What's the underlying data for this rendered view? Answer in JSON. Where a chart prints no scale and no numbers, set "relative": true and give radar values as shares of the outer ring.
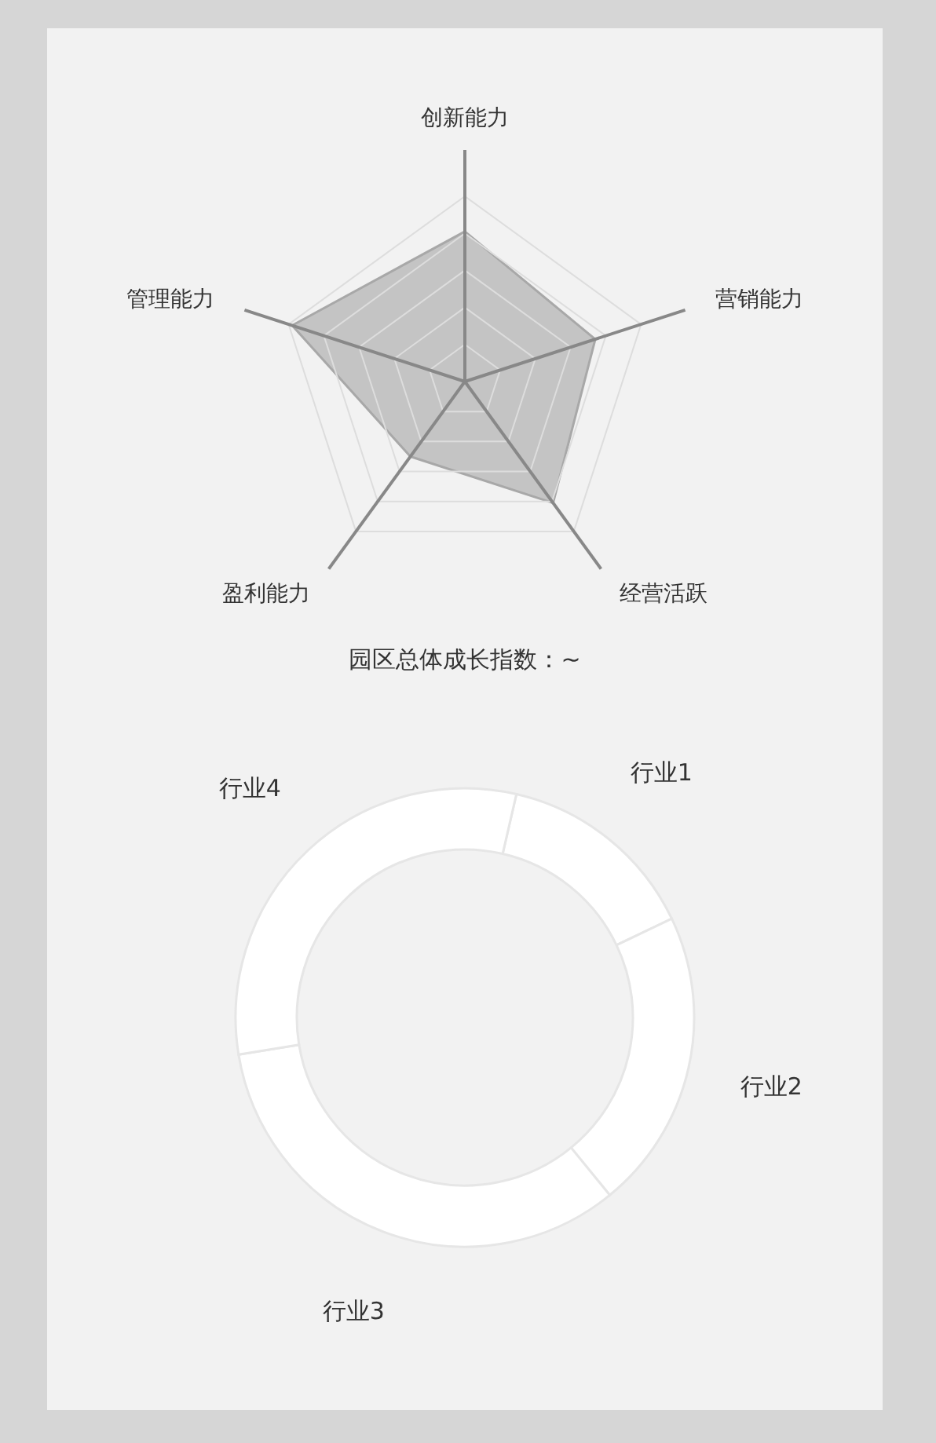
{
  "chart_data": [
    {
      "type": "radar",
      "categories": [
        "创新能力",
        "营销能力",
        "经营活跃",
        "盈利能力",
        "管理能力"
      ],
      "relative": true,
      "grid": true,
      "legend": false,
      "series": [
        {
          "color": "#c4c4c4",
          "values": [
            0.81,
            0.74,
            0.81,
            0.5,
            0.98
          ]
        }
      ]
    },
    {
      "type": "donut",
      "title": "园区总体成长指数：~",
      "categories": [
        "行业1",
        "行业2",
        "行业3",
        "行业4"
      ],
      "values": [
        14.3,
        21.2,
        33.3,
        31.2
      ],
      "colors": [
        "#ffffff",
        "#ffffff",
        "#ffffff",
        "#ffffff"
      ],
      "legend": false
    }
  ]
}
